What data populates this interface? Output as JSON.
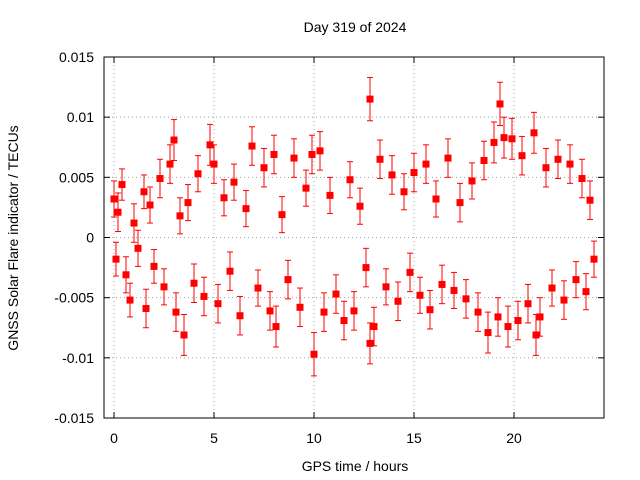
{
  "chart_data": {
    "type": "scatter",
    "title": "Day 319 of 2024",
    "xlabel": "GPS time / hours",
    "ylabel": "GNSS Solar Flare indicator / TECUs",
    "xlim": [
      -0.5,
      24.5
    ],
    "ylim": [
      -0.015,
      0.015
    ],
    "x_ticks": [
      0,
      5,
      10,
      15,
      20
    ],
    "x_tick_labels": [
      "0",
      "5",
      "10",
      "15",
      "20"
    ],
    "y_ticks": [
      -0.015,
      -0.01,
      -0.005,
      0,
      0.005,
      0.01,
      0.015
    ],
    "y_tick_labels": [
      "-0.015",
      "-0.01",
      "-0.005",
      "0",
      "0.005",
      "0.01",
      "0.015"
    ],
    "grid": true,
    "color": "#ff0000",
    "series": [
      {
        "marker": "square",
        "error_bars": true,
        "points": [
          {
            "x": 0.0,
            "y": 0.0032,
            "err": 0.0015
          },
          {
            "x": 0.1,
            "y": -0.0018,
            "err": 0.0014
          },
          {
            "x": 0.2,
            "y": 0.0021,
            "err": 0.0016
          },
          {
            "x": 0.4,
            "y": 0.0044,
            "err": 0.0013
          },
          {
            "x": 0.6,
            "y": -0.0031,
            "err": 0.0015
          },
          {
            "x": 0.8,
            "y": -0.0052,
            "err": 0.0014
          },
          {
            "x": 1.0,
            "y": 0.0012,
            "err": 0.0016
          },
          {
            "x": 1.2,
            "y": -0.0009,
            "err": 0.0015
          },
          {
            "x": 1.5,
            "y": 0.0038,
            "err": 0.0014
          },
          {
            "x": 1.6,
            "y": -0.0059,
            "err": 0.0016
          },
          {
            "x": 1.8,
            "y": 0.0027,
            "err": 0.0015
          },
          {
            "x": 2.0,
            "y": -0.0024,
            "err": 0.0014
          },
          {
            "x": 2.3,
            "y": 0.0049,
            "err": 0.0016
          },
          {
            "x": 2.5,
            "y": -0.0041,
            "err": 0.0015
          },
          {
            "x": 2.8,
            "y": 0.0061,
            "err": 0.0016
          },
          {
            "x": 3.0,
            "y": 0.0081,
            "err": 0.0017
          },
          {
            "x": 3.1,
            "y": -0.0062,
            "err": 0.0016
          },
          {
            "x": 3.3,
            "y": 0.0018,
            "err": 0.0015
          },
          {
            "x": 3.5,
            "y": -0.0081,
            "err": 0.0017
          },
          {
            "x": 3.7,
            "y": 0.0029,
            "err": 0.0015
          },
          {
            "x": 4.0,
            "y": -0.0038,
            "err": 0.0016
          },
          {
            "x": 4.2,
            "y": 0.0053,
            "err": 0.0015
          },
          {
            "x": 4.5,
            "y": -0.0049,
            "err": 0.0016
          },
          {
            "x": 4.8,
            "y": 0.0077,
            "err": 0.0017
          },
          {
            "x": 5.0,
            "y": 0.0061,
            "err": 0.0016
          },
          {
            "x": 5.2,
            "y": -0.0055,
            "err": 0.0016
          },
          {
            "x": 5.5,
            "y": 0.0033,
            "err": 0.0015
          },
          {
            "x": 5.8,
            "y": -0.0028,
            "err": 0.0016
          },
          {
            "x": 6.0,
            "y": 0.0046,
            "err": 0.0015
          },
          {
            "x": 6.3,
            "y": -0.0065,
            "err": 0.0016
          },
          {
            "x": 6.6,
            "y": 0.0024,
            "err": 0.0015
          },
          {
            "x": 6.9,
            "y": 0.0076,
            "err": 0.0016
          },
          {
            "x": 7.2,
            "y": -0.0042,
            "err": 0.0015
          },
          {
            "x": 7.5,
            "y": 0.0058,
            "err": 0.0016
          },
          {
            "x": 7.8,
            "y": -0.0061,
            "err": 0.0016
          },
          {
            "x": 8.0,
            "y": 0.0069,
            "err": 0.0016
          },
          {
            "x": 8.1,
            "y": -0.0074,
            "err": 0.0017
          },
          {
            "x": 8.4,
            "y": 0.0019,
            "err": 0.0015
          },
          {
            "x": 8.7,
            "y": -0.0035,
            "err": 0.0016
          },
          {
            "x": 9.0,
            "y": 0.0066,
            "err": 0.0016
          },
          {
            "x": 9.3,
            "y": -0.0058,
            "err": 0.0016
          },
          {
            "x": 9.6,
            "y": 0.0041,
            "err": 0.0015
          },
          {
            "x": 9.9,
            "y": 0.0069,
            "err": 0.0016
          },
          {
            "x": 10.0,
            "y": -0.0097,
            "err": 0.0018
          },
          {
            "x": 10.3,
            "y": 0.0072,
            "err": 0.0016
          },
          {
            "x": 10.5,
            "y": -0.0062,
            "err": 0.0016
          },
          {
            "x": 10.8,
            "y": 0.0035,
            "err": 0.0015
          },
          {
            "x": 11.1,
            "y": -0.0047,
            "err": 0.0016
          },
          {
            "x": 11.5,
            "y": -0.0069,
            "err": 0.0016
          },
          {
            "x": 11.8,
            "y": 0.0048,
            "err": 0.0015
          },
          {
            "x": 12.0,
            "y": -0.0061,
            "err": 0.0016
          },
          {
            "x": 12.3,
            "y": 0.0026,
            "err": 0.0015
          },
          {
            "x": 12.6,
            "y": -0.0025,
            "err": 0.0016
          },
          {
            "x": 12.8,
            "y": 0.0115,
            "err": 0.0018
          },
          {
            "x": 12.8,
            "y": -0.0088,
            "err": 0.0017
          },
          {
            "x": 13.0,
            "y": -0.0074,
            "err": 0.0016
          },
          {
            "x": 13.3,
            "y": 0.0065,
            "err": 0.0016
          },
          {
            "x": 13.6,
            "y": -0.0041,
            "err": 0.0015
          },
          {
            "x": 13.9,
            "y": 0.0052,
            "err": 0.0016
          },
          {
            "x": 14.2,
            "y": -0.0053,
            "err": 0.0016
          },
          {
            "x": 14.5,
            "y": 0.0038,
            "err": 0.0015
          },
          {
            "x": 14.8,
            "y": -0.0029,
            "err": 0.0016
          },
          {
            "x": 15.0,
            "y": 0.0054,
            "err": 0.0016
          },
          {
            "x": 15.3,
            "y": -0.0048,
            "err": 0.0015
          },
          {
            "x": 15.6,
            "y": 0.0061,
            "err": 0.0016
          },
          {
            "x": 15.8,
            "y": -0.006,
            "err": 0.0016
          },
          {
            "x": 16.1,
            "y": 0.0032,
            "err": 0.0015
          },
          {
            "x": 16.4,
            "y": -0.0039,
            "err": 0.0016
          },
          {
            "x": 16.7,
            "y": 0.0066,
            "err": 0.0016
          },
          {
            "x": 17.0,
            "y": -0.0044,
            "err": 0.0015
          },
          {
            "x": 17.3,
            "y": 0.0029,
            "err": 0.0016
          },
          {
            "x": 17.6,
            "y": -0.0051,
            "err": 0.0016
          },
          {
            "x": 17.9,
            "y": 0.0047,
            "err": 0.0015
          },
          {
            "x": 18.2,
            "y": -0.0062,
            "err": 0.0016
          },
          {
            "x": 18.5,
            "y": 0.0064,
            "err": 0.0016
          },
          {
            "x": 18.7,
            "y": -0.0079,
            "err": 0.0017
          },
          {
            "x": 19.0,
            "y": 0.0079,
            "err": 0.0017
          },
          {
            "x": 19.2,
            "y": -0.0066,
            "err": 0.0016
          },
          {
            "x": 19.3,
            "y": 0.0111,
            "err": 0.0018
          },
          {
            "x": 19.5,
            "y": 0.0083,
            "err": 0.0017
          },
          {
            "x": 19.7,
            "y": -0.0074,
            "err": 0.0017
          },
          {
            "x": 19.9,
            "y": 0.0082,
            "err": 0.0017
          },
          {
            "x": 20.2,
            "y": -0.0069,
            "err": 0.0016
          },
          {
            "x": 20.4,
            "y": 0.0068,
            "err": 0.0016
          },
          {
            "x": 20.7,
            "y": -0.0055,
            "err": 0.0016
          },
          {
            "x": 21.0,
            "y": 0.0087,
            "err": 0.0017
          },
          {
            "x": 21.1,
            "y": -0.0081,
            "err": 0.0017
          },
          {
            "x": 21.3,
            "y": -0.0066,
            "err": 0.0016
          },
          {
            "x": 21.6,
            "y": 0.0058,
            "err": 0.0016
          },
          {
            "x": 21.9,
            "y": -0.0042,
            "err": 0.0015
          },
          {
            "x": 22.2,
            "y": 0.0065,
            "err": 0.0016
          },
          {
            "x": 22.5,
            "y": -0.0052,
            "err": 0.0016
          },
          {
            "x": 22.8,
            "y": 0.0061,
            "err": 0.0016
          },
          {
            "x": 23.1,
            "y": -0.0035,
            "err": 0.0015
          },
          {
            "x": 23.4,
            "y": 0.0049,
            "err": 0.0016
          },
          {
            "x": 23.6,
            "y": -0.0045,
            "err": 0.0015
          },
          {
            "x": 23.8,
            "y": 0.0031,
            "err": 0.0016
          },
          {
            "x": 24.0,
            "y": -0.0018,
            "err": 0.0015
          }
        ]
      }
    ]
  }
}
